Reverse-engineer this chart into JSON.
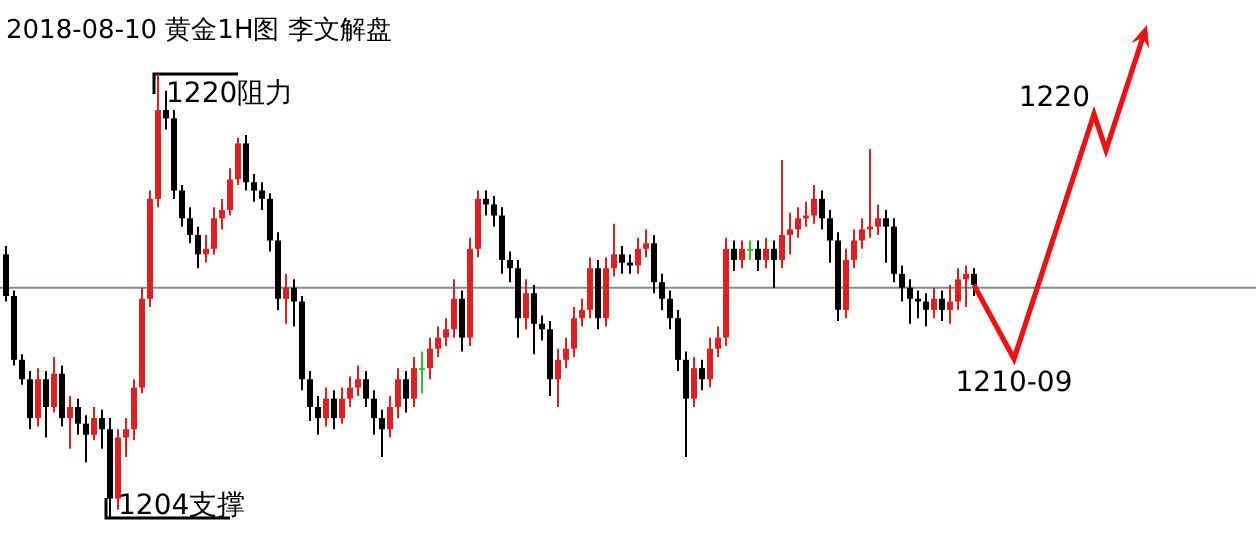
{
  "chart_data": {
    "type": "candlestick",
    "title": "2018-08-10 黄金1H图 李文解盘",
    "categories": [
      null,
      null,
      null,
      null,
      null,
      null,
      null,
      null,
      null,
      null,
      null,
      null,
      null,
      null,
      null,
      null,
      null,
      null,
      null,
      null,
      null,
      null,
      null,
      null,
      null,
      null,
      null,
      null,
      null,
      null,
      null,
      null,
      null,
      null,
      null,
      null,
      null,
      null,
      null,
      null,
      null,
      null,
      null,
      null,
      null,
      null,
      null,
      null,
      null,
      null,
      null,
      null,
      null,
      null,
      null,
      null,
      null,
      null,
      null,
      null,
      null,
      null,
      null,
      null,
      null,
      null,
      null,
      null,
      null,
      null,
      null,
      null,
      null,
      null,
      null,
      null,
      null,
      null,
      null,
      null,
      null,
      null,
      null,
      null,
      null,
      null,
      null,
      null,
      null,
      null,
      null,
      null,
      null,
      null,
      null,
      null,
      null,
      null,
      null,
      null,
      null,
      null,
      null,
      null,
      null,
      null,
      null,
      null,
      null,
      null,
      null,
      null,
      null,
      null,
      null,
      null,
      null,
      null,
      null,
      null,
      null,
      null
    ],
    "colors": [
      "#000000",
      "#000000",
      "#000000",
      "#000000",
      "#dd2020",
      "#000000",
      "#dd2020",
      "#000000",
      "#dd2020",
      "#000000",
      "#000000",
      "#dd2020",
      "#000000",
      "#000000",
      "#dd2020",
      "#dd2020",
      "#dd2020",
      "#dd2020",
      "#dd2020",
      "#dd2020",
      "#000000",
      "#000000",
      "#000000",
      "#000000",
      "#000000",
      "#dd2020",
      "#dd2020",
      "#dd2020",
      "#dd2020",
      "#dd2020",
      "#000000",
      "#000000",
      "#000000",
      "#000000",
      "#000000",
      "#dd2020",
      "#000000",
      "#000000",
      "#000000",
      "#000000",
      "#dd2020",
      "#000000",
      "#dd2020",
      "#dd2020",
      "#dd2020",
      "#000000",
      "#000000",
      "#000000",
      "#dd2020",
      "#dd2020",
      "#000000",
      "#dd2020",
      "#33bb33",
      "#dd2020",
      "#dd2020",
      "#dd2020",
      "#dd2020",
      "#000000",
      "#dd2020",
      "#dd2020",
      "#000000",
      "#000000",
      "#000000",
      "#000000",
      "#000000",
      "#dd2020",
      "#000000",
      "#000000",
      "#000000",
      "#dd2020",
      "#dd2020",
      "#dd2020",
      "#dd2020",
      "#dd2020",
      "#000000",
      "#dd2020",
      "#dd2020",
      "#000000",
      "#000000",
      "#dd2020",
      "#dd2020",
      "#000000",
      "#000000",
      "#000000",
      "#000000",
      "#000000",
      "#dd2020",
      "#000000",
      "#dd2020",
      "#dd2020",
      "#dd2020",
      "#000000",
      "#dd2020",
      "#33bb33",
      "#000000",
      "#dd2020",
      "#000000",
      "#dd2020",
      "#dd2020",
      "#dd2020",
      "#dd2020",
      "#dd2020",
      "#000000",
      "#000000",
      "#000000",
      "#dd2020",
      "#dd2020",
      "#dd2020",
      "#dd2020",
      "#dd2020",
      "#000000",
      "#000000",
      "#000000",
      "#000000",
      "#000000",
      "#000000",
      "#dd2020",
      "#000000",
      "#dd2020",
      "#dd2020",
      "#dd2020",
      "#000000"
    ],
    "ohlc": [
      [
        1213.5,
        1213.8,
        1211.8,
        1212.0
      ],
      [
        1212.0,
        1212.2,
        1209.5,
        1209.7
      ],
      [
        1209.7,
        1209.9,
        1208.8,
        1209.0
      ],
      [
        1209.0,
        1209.3,
        1207.2,
        1207.6
      ],
      [
        1207.6,
        1209.4,
        1207.3,
        1209.0
      ],
      [
        1209.0,
        1209.3,
        1206.9,
        1208.0
      ],
      [
        1208.0,
        1209.8,
        1207.8,
        1209.2
      ],
      [
        1209.2,
        1209.5,
        1207.3,
        1207.6
      ],
      [
        1207.6,
        1208.4,
        1206.5,
        1208.0
      ],
      [
        1208.0,
        1208.3,
        1207.0,
        1207.4
      ],
      [
        1207.4,
        1207.7,
        1206.0,
        1207.0
      ],
      [
        1207.0,
        1208.0,
        1206.8,
        1207.6
      ],
      [
        1207.6,
        1207.9,
        1206.5,
        1207.2
      ],
      [
        1207.2,
        1207.6,
        1204.0,
        1204.7
      ],
      [
        1204.7,
        1207.2,
        1204.3,
        1206.9
      ],
      [
        1206.9,
        1207.6,
        1206.2,
        1207.2
      ],
      [
        1207.2,
        1209.0,
        1206.8,
        1208.7
      ],
      [
        1208.7,
        1212.3,
        1208.5,
        1211.9
      ],
      [
        1211.9,
        1215.8,
        1211.6,
        1215.5
      ],
      [
        1215.5,
        1220.0,
        1215.2,
        1218.7
      ],
      [
        1218.7,
        1219.4,
        1218.0,
        1218.4
      ],
      [
        1218.4,
        1218.7,
        1215.5,
        1215.8
      ],
      [
        1215.8,
        1216.0,
        1214.5,
        1214.8
      ],
      [
        1214.8,
        1215.2,
        1213.9,
        1214.2
      ],
      [
        1214.2,
        1214.5,
        1213.0,
        1213.5
      ],
      [
        1213.5,
        1214.2,
        1213.2,
        1213.7
      ],
      [
        1213.7,
        1215.2,
        1213.5,
        1214.8
      ],
      [
        1214.8,
        1215.5,
        1214.4,
        1215.1
      ],
      [
        1215.1,
        1216.6,
        1214.9,
        1216.2
      ],
      [
        1216.2,
        1217.7,
        1216.0,
        1217.5
      ],
      [
        1217.5,
        1217.8,
        1215.8,
        1216.1
      ],
      [
        1216.1,
        1216.4,
        1215.4,
        1215.8
      ],
      [
        1215.8,
        1216.1,
        1215.1,
        1215.5
      ],
      [
        1215.5,
        1215.7,
        1213.6,
        1214.0
      ],
      [
        1214.0,
        1214.3,
        1211.5,
        1211.9
      ],
      [
        1211.9,
        1212.8,
        1211.0,
        1212.3
      ],
      [
        1212.3,
        1212.6,
        1210.9,
        1211.8
      ],
      [
        1211.8,
        1212.0,
        1208.6,
        1209.0
      ],
      [
        1209.0,
        1209.3,
        1207.5,
        1208.0
      ],
      [
        1208.0,
        1208.4,
        1207.0,
        1207.6
      ],
      [
        1207.6,
        1208.7,
        1207.3,
        1208.3
      ],
      [
        1208.3,
        1208.6,
        1207.2,
        1207.6
      ],
      [
        1207.6,
        1208.7,
        1207.4,
        1208.3
      ],
      [
        1208.3,
        1209.1,
        1208.0,
        1208.7
      ],
      [
        1208.7,
        1209.5,
        1208.4,
        1209.0
      ],
      [
        1209.0,
        1209.3,
        1208.0,
        1208.3
      ],
      [
        1208.3,
        1208.6,
        1207.0,
        1207.6
      ],
      [
        1207.6,
        1207.9,
        1206.2,
        1207.2
      ],
      [
        1207.2,
        1208.4,
        1206.9,
        1208.0
      ],
      [
        1208.0,
        1209.4,
        1207.6,
        1209.0
      ],
      [
        1209.0,
        1209.3,
        1207.8,
        1208.3
      ],
      [
        1208.3,
        1209.8,
        1208.0,
        1209.4
      ],
      [
        1209.4,
        1210.0,
        1208.5,
        1209.4
      ],
      [
        1209.4,
        1210.5,
        1209.0,
        1210.1
      ],
      [
        1210.1,
        1210.9,
        1209.8,
        1210.5
      ],
      [
        1210.5,
        1211.2,
        1210.2,
        1210.8
      ],
      [
        1210.8,
        1212.6,
        1210.5,
        1211.9
      ],
      [
        1211.9,
        1212.2,
        1210.0,
        1210.5
      ],
      [
        1210.5,
        1214.1,
        1210.2,
        1213.7
      ],
      [
        1213.7,
        1215.8,
        1213.4,
        1215.5
      ],
      [
        1215.5,
        1215.8,
        1214.9,
        1215.3
      ],
      [
        1215.3,
        1215.6,
        1214.5,
        1214.9
      ],
      [
        1214.9,
        1215.2,
        1212.8,
        1213.3
      ],
      [
        1213.3,
        1213.6,
        1212.5,
        1213.0
      ],
      [
        1213.0,
        1213.3,
        1210.5,
        1211.2
      ],
      [
        1211.2,
        1212.6,
        1210.8,
        1212.1
      ],
      [
        1212.1,
        1212.4,
        1209.9,
        1211.0
      ],
      [
        1211.0,
        1211.3,
        1210.4,
        1210.8
      ],
      [
        1210.8,
        1211.1,
        1208.4,
        1209.0
      ],
      [
        1209.0,
        1210.1,
        1208.0,
        1209.7
      ],
      [
        1209.7,
        1210.5,
        1209.4,
        1210.1
      ],
      [
        1210.1,
        1211.6,
        1209.8,
        1211.2
      ],
      [
        1211.2,
        1211.9,
        1210.9,
        1211.5
      ],
      [
        1211.5,
        1213.4,
        1211.2,
        1213.0
      ],
      [
        1213.0,
        1213.3,
        1210.8,
        1211.2
      ],
      [
        1211.2,
        1213.4,
        1210.9,
        1213.0
      ],
      [
        1213.0,
        1214.6,
        1212.7,
        1213.5
      ],
      [
        1213.5,
        1213.8,
        1212.8,
        1213.2
      ],
      [
        1213.2,
        1213.5,
        1212.8,
        1213.1
      ],
      [
        1213.1,
        1214.1,
        1212.8,
        1213.7
      ],
      [
        1213.7,
        1214.4,
        1213.4,
        1213.9
      ],
      [
        1213.9,
        1214.2,
        1212.1,
        1212.5
      ],
      [
        1212.5,
        1212.8,
        1211.5,
        1211.9
      ],
      [
        1211.9,
        1212.2,
        1210.8,
        1211.2
      ],
      [
        1211.2,
        1211.5,
        1209.3,
        1209.7
      ],
      [
        1209.7,
        1210.0,
        1206.2,
        1208.3
      ],
      [
        1208.3,
        1209.8,
        1208.0,
        1209.4
      ],
      [
        1209.4,
        1209.7,
        1208.6,
        1209.0
      ],
      [
        1209.0,
        1210.5,
        1208.7,
        1210.1
      ],
      [
        1210.1,
        1210.9,
        1209.8,
        1210.5
      ],
      [
        1210.5,
        1214.1,
        1210.2,
        1213.7
      ],
      [
        1213.7,
        1214.0,
        1212.9,
        1213.3
      ],
      [
        1213.3,
        1214.0,
        1213.0,
        1213.7
      ],
      [
        1213.7,
        1214.0,
        1213.3,
        1213.7
      ],
      [
        1213.7,
        1214.0,
        1212.9,
        1213.3
      ],
      [
        1213.3,
        1214.1,
        1213.0,
        1213.7
      ],
      [
        1213.7,
        1214.0,
        1212.3,
        1213.3
      ],
      [
        1213.3,
        1216.9,
        1213.0,
        1214.2
      ],
      [
        1214.2,
        1215.0,
        1213.5,
        1214.4
      ],
      [
        1214.4,
        1215.2,
        1214.1,
        1214.8
      ],
      [
        1214.8,
        1215.4,
        1214.5,
        1214.9
      ],
      [
        1214.9,
        1216.0,
        1214.6,
        1215.5
      ],
      [
        1215.5,
        1215.8,
        1214.4,
        1214.8
      ],
      [
        1214.8,
        1215.1,
        1213.2,
        1214.0
      ],
      [
        1214.0,
        1214.3,
        1211.1,
        1211.5
      ],
      [
        1211.5,
        1213.7,
        1211.2,
        1213.3
      ],
      [
        1213.3,
        1214.4,
        1213.0,
        1214.0
      ],
      [
        1214.0,
        1214.8,
        1213.7,
        1214.4
      ],
      [
        1214.4,
        1217.3,
        1214.1,
        1214.5
      ],
      [
        1214.5,
        1215.3,
        1214.2,
        1214.8
      ],
      [
        1214.8,
        1215.1,
        1213.2,
        1214.5
      ],
      [
        1214.5,
        1214.8,
        1212.5,
        1212.8
      ],
      [
        1212.8,
        1213.1,
        1211.8,
        1212.3
      ],
      [
        1212.3,
        1212.6,
        1211.0,
        1211.9
      ],
      [
        1211.9,
        1212.2,
        1211.2,
        1211.8
      ],
      [
        1211.8,
        1212.1,
        1210.9,
        1211.5
      ],
      [
        1211.5,
        1212.3,
        1211.2,
        1211.9
      ],
      [
        1211.9,
        1212.2,
        1211.1,
        1211.5
      ],
      [
        1211.5,
        1212.4,
        1211.0,
        1211.8
      ],
      [
        1211.8,
        1213.0,
        1211.5,
        1212.6
      ],
      [
        1212.6,
        1213.1,
        1211.6,
        1212.8
      ],
      [
        1212.8,
        1213.0,
        1212.0,
        1212.4
      ]
    ],
    "ref_lines": [
      {
        "axis": "y",
        "value": 1212.3,
        "color": "#7f8c99"
      }
    ],
    "annotations": [
      "1220阻力",
      "1204支撑",
      "1210-09",
      "1220"
    ]
  }
}
